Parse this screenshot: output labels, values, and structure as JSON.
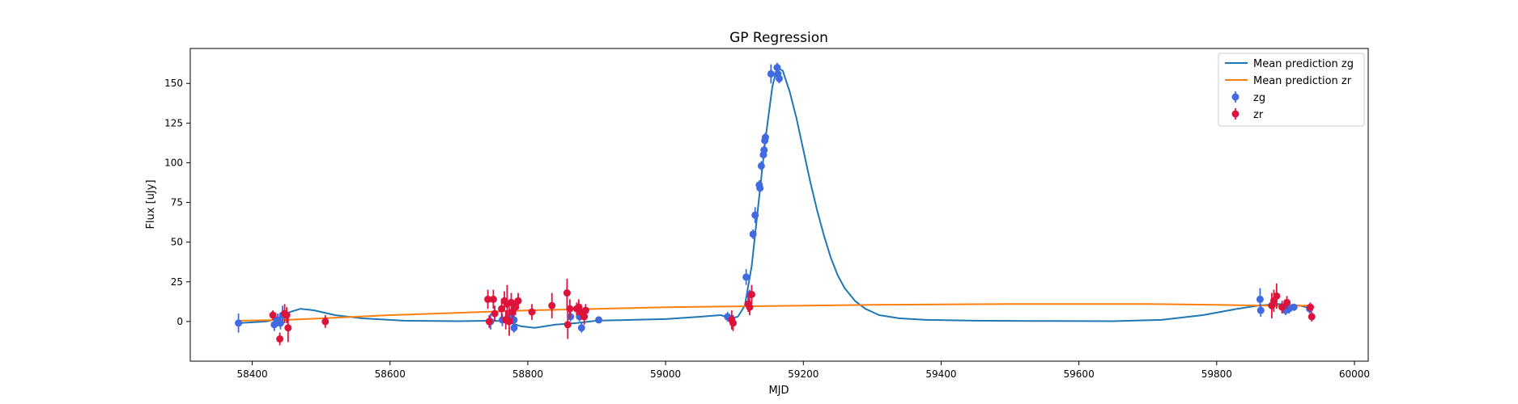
{
  "chart_data": {
    "type": "scatter",
    "title": "GP Regression",
    "xlabel": "MJD",
    "ylabel": "Flux [uJy]",
    "xlim": [
      58310,
      60020
    ],
    "ylim": [
      -25,
      172
    ],
    "xticks": [
      58400,
      58600,
      58800,
      59000,
      59200,
      59400,
      59600,
      59800,
      60000
    ],
    "yticks": [
      0,
      25,
      50,
      75,
      100,
      125,
      150
    ],
    "grid": false,
    "legend_position": "top-right",
    "legend": [
      {
        "label": "Mean prediction zg",
        "kind": "line",
        "color": "#1f77b4"
      },
      {
        "label": "Mean prediction zr",
        "kind": "line",
        "color": "#ff7f0e"
      },
      {
        "label": "zg",
        "kind": "errorbar",
        "color": "#4169e1"
      },
      {
        "label": "zr",
        "kind": "errorbar",
        "color": "#dc143c"
      }
    ],
    "lines": [
      {
        "name": "Mean prediction zg",
        "color": "#1f77b4",
        "points": [
          [
            58380,
            -1
          ],
          [
            58420,
            0
          ],
          [
            58440,
            2
          ],
          [
            58455,
            6
          ],
          [
            58470,
            8
          ],
          [
            58490,
            7
          ],
          [
            58520,
            4
          ],
          [
            58560,
            2
          ],
          [
            58620,
            0.5
          ],
          [
            58700,
            0.2
          ],
          [
            58750,
            0.5
          ],
          [
            58770,
            0
          ],
          [
            58790,
            -3
          ],
          [
            58810,
            -4
          ],
          [
            58840,
            -2
          ],
          [
            58870,
            -1
          ],
          [
            58900,
            0.5
          ],
          [
            58950,
            1
          ],
          [
            59000,
            1.5
          ],
          [
            59050,
            3
          ],
          [
            59080,
            4
          ],
          [
            59095,
            2
          ],
          [
            59105,
            3
          ],
          [
            59115,
            10
          ],
          [
            59125,
            35
          ],
          [
            59135,
            75
          ],
          [
            59145,
            115
          ],
          [
            59155,
            148
          ],
          [
            59162,
            160
          ],
          [
            59170,
            158
          ],
          [
            59180,
            145
          ],
          [
            59190,
            128
          ],
          [
            59200,
            108
          ],
          [
            59210,
            88
          ],
          [
            59220,
            70
          ],
          [
            59230,
            54
          ],
          [
            59240,
            40
          ],
          [
            59250,
            29
          ],
          [
            59260,
            21
          ],
          [
            59275,
            13
          ],
          [
            59290,
            8
          ],
          [
            59310,
            4
          ],
          [
            59340,
            2
          ],
          [
            59380,
            1
          ],
          [
            59450,
            0.5
          ],
          [
            59550,
            0.3
          ],
          [
            59650,
            0.2
          ],
          [
            59720,
            1
          ],
          [
            59780,
            4
          ],
          [
            59830,
            8
          ],
          [
            59860,
            10
          ],
          [
            59890,
            11
          ],
          [
            59920,
            10
          ],
          [
            59940,
            8
          ]
        ]
      },
      {
        "name": "Mean prediction zr",
        "color": "#ff7f0e",
        "points": [
          [
            58380,
            0.5
          ],
          [
            58450,
            1
          ],
          [
            58500,
            2
          ],
          [
            58600,
            4
          ],
          [
            58700,
            5.5
          ],
          [
            58800,
            7
          ],
          [
            58900,
            8
          ],
          [
            59000,
            9
          ],
          [
            59100,
            9.5
          ],
          [
            59200,
            10
          ],
          [
            59300,
            10.5
          ],
          [
            59400,
            10.8
          ],
          [
            59500,
            11
          ],
          [
            59600,
            11
          ],
          [
            59700,
            11
          ],
          [
            59800,
            10.5
          ],
          [
            59870,
            10
          ],
          [
            59940,
            10
          ]
        ]
      }
    ],
    "series": [
      {
        "name": "zg",
        "color": "#4169e1",
        "points": [
          {
            "x": 58380,
            "y": -1,
            "err": 6
          },
          {
            "x": 58432,
            "y": -2,
            "err": 4
          },
          {
            "x": 58437,
            "y": 1,
            "err": 4
          },
          {
            "x": 58441,
            "y": -1,
            "err": 4
          },
          {
            "x": 58444,
            "y": 4,
            "err": 6
          },
          {
            "x": 58746,
            "y": 0,
            "err": 5
          },
          {
            "x": 58763,
            "y": 1,
            "err": 4
          },
          {
            "x": 58772,
            "y": 3,
            "err": 4
          },
          {
            "x": 58780,
            "y": 1,
            "err": 4
          },
          {
            "x": 58780,
            "y": -4,
            "err": 3
          },
          {
            "x": 58862,
            "y": 3,
            "err": 3
          },
          {
            "x": 58875,
            "y": 3,
            "err": 3
          },
          {
            "x": 58878,
            "y": -4,
            "err": 3
          },
          {
            "x": 58903,
            "y": 1,
            "err": 2
          },
          {
            "x": 59090,
            "y": 3,
            "err": 3
          },
          {
            "x": 59117,
            "y": 28,
            "err": 5
          },
          {
            "x": 59122,
            "y": 17,
            "err": 3
          },
          {
            "x": 59127,
            "y": 55,
            "err": 3
          },
          {
            "x": 59130,
            "y": 67,
            "err": 5
          },
          {
            "x": 59136,
            "y": 86,
            "err": 3
          },
          {
            "x": 59137,
            "y": 84,
            "err": 3
          },
          {
            "x": 59139,
            "y": 98,
            "err": 3
          },
          {
            "x": 59142,
            "y": 105,
            "err": 3
          },
          {
            "x": 59143,
            "y": 108,
            "err": 3
          },
          {
            "x": 59144,
            "y": 114,
            "err": 3
          },
          {
            "x": 59145,
            "y": 116,
            "err": 3
          },
          {
            "x": 59153,
            "y": 156,
            "err": 6
          },
          {
            "x": 59162,
            "y": 160,
            "err": 3
          },
          {
            "x": 59163,
            "y": 156,
            "err": 3
          },
          {
            "x": 59165,
            "y": 153,
            "err": 3
          },
          {
            "x": 59863,
            "y": 14,
            "err": 7
          },
          {
            "x": 59864,
            "y": 7,
            "err": 4
          },
          {
            "x": 59880,
            "y": 10,
            "err": 3
          },
          {
            "x": 59900,
            "y": 7,
            "err": 3
          },
          {
            "x": 59905,
            "y": 8,
            "err": 3
          },
          {
            "x": 59912,
            "y": 9,
            "err": 2
          },
          {
            "x": 59935,
            "y": 8,
            "err": 3
          }
        ]
      },
      {
        "name": "zr",
        "color": "#dc143c",
        "points": [
          {
            "x": 58430,
            "y": 4,
            "err": 3
          },
          {
            "x": 58440,
            "y": -11,
            "err": 4
          },
          {
            "x": 58447,
            "y": 5,
            "err": 6
          },
          {
            "x": 58450,
            "y": 4,
            "err": 5
          },
          {
            "x": 58452,
            "y": -4,
            "err": 9
          },
          {
            "x": 58506,
            "y": 0,
            "err": 4
          },
          {
            "x": 58742,
            "y": 14,
            "err": 6
          },
          {
            "x": 58744,
            "y": 0,
            "err": 4
          },
          {
            "x": 58750,
            "y": 14,
            "err": 6
          },
          {
            "x": 58752,
            "y": 5,
            "err": 5
          },
          {
            "x": 58762,
            "y": 8,
            "err": 6
          },
          {
            "x": 58766,
            "y": 13,
            "err": 6
          },
          {
            "x": 58768,
            "y": 1,
            "err": 6
          },
          {
            "x": 58770,
            "y": 11,
            "err": 12
          },
          {
            "x": 58773,
            "y": 0,
            "err": 9
          },
          {
            "x": 58776,
            "y": 12,
            "err": 6
          },
          {
            "x": 58778,
            "y": 6,
            "err": 5
          },
          {
            "x": 58782,
            "y": 9,
            "err": 5
          },
          {
            "x": 58786,
            "y": 13,
            "err": 5
          },
          {
            "x": 58806,
            "y": 6,
            "err": 5
          },
          {
            "x": 58835,
            "y": 10,
            "err": 8
          },
          {
            "x": 58857,
            "y": 18,
            "err": 9
          },
          {
            "x": 58858,
            "y": -2,
            "err": 9
          },
          {
            "x": 58861,
            "y": 8,
            "err": 6
          },
          {
            "x": 58871,
            "y": 8,
            "err": 4
          },
          {
            "x": 58874,
            "y": 9,
            "err": 5
          },
          {
            "x": 58877,
            "y": 6,
            "err": 5
          },
          {
            "x": 58882,
            "y": 3,
            "err": 5
          },
          {
            "x": 58884,
            "y": 7,
            "err": 4
          },
          {
            "x": 59096,
            "y": 1,
            "err": 6
          },
          {
            "x": 59098,
            "y": -1,
            "err": 5
          },
          {
            "x": 59120,
            "y": 11,
            "err": 5
          },
          {
            "x": 59122,
            "y": 9,
            "err": 5
          },
          {
            "x": 59125,
            "y": 17,
            "err": 6
          },
          {
            "x": 59880,
            "y": 10,
            "err": 8
          },
          {
            "x": 59883,
            "y": 13,
            "err": 7
          },
          {
            "x": 59887,
            "y": 16,
            "err": 8
          },
          {
            "x": 59895,
            "y": 9,
            "err": 4
          },
          {
            "x": 59902,
            "y": 12,
            "err": 4
          },
          {
            "x": 59936,
            "y": 9,
            "err": 3
          },
          {
            "x": 59938,
            "y": 3,
            "err": 3
          }
        ]
      }
    ]
  }
}
